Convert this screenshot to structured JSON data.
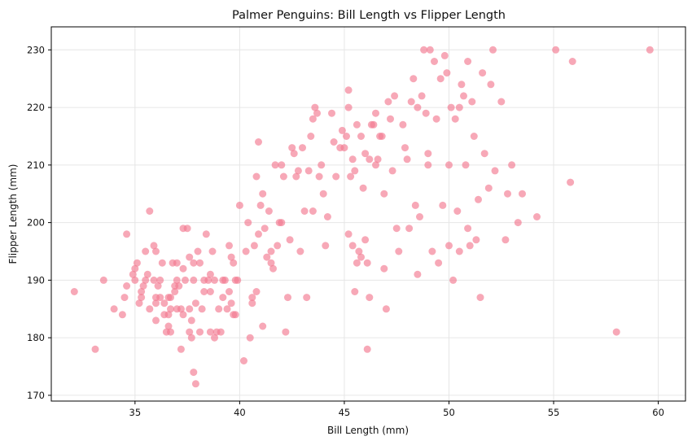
{
  "chart_data": {
    "type": "scatter",
    "title": "Palmer Penguins: Bill Length vs Flipper Length",
    "xlabel": "Bill Length (mm)",
    "ylabel": "Flipper Length (mm)",
    "xlim": [
      31,
      61.3
    ],
    "ylim": [
      169,
      234
    ],
    "xticks": [
      35,
      40,
      45,
      50,
      55,
      60
    ],
    "yticks": [
      170,
      180,
      190,
      200,
      210,
      220,
      230
    ],
    "grid": true,
    "legend": "none",
    "marker_color": "#F37A91",
    "marker_opacity": 0.65,
    "series": [
      {
        "points": [
          [
            32.1,
            188
          ],
          [
            33.1,
            178
          ],
          [
            33.5,
            190
          ],
          [
            34.0,
            185
          ],
          [
            34.4,
            184
          ],
          [
            34.5,
            187
          ],
          [
            34.6,
            189
          ],
          [
            34.6,
            198
          ],
          [
            35.0,
            190
          ],
          [
            35.0,
            192
          ],
          [
            35.1,
            193
          ],
          [
            35.2,
            186
          ],
          [
            35.3,
            187
          ],
          [
            35.5,
            190
          ],
          [
            35.5,
            195
          ],
          [
            35.6,
            191
          ],
          [
            35.7,
            185
          ],
          [
            35.7,
            202
          ],
          [
            35.9,
            190
          ],
          [
            36.0,
            186
          ],
          [
            36.0,
            187
          ],
          [
            36.0,
            195
          ],
          [
            36.1,
            189
          ],
          [
            36.2,
            187
          ],
          [
            36.2,
            190
          ],
          [
            36.4,
            184
          ],
          [
            36.5,
            181
          ],
          [
            36.6,
            182
          ],
          [
            36.6,
            184
          ],
          [
            36.7,
            185
          ],
          [
            36.7,
            187
          ],
          [
            36.8,
            193
          ],
          [
            36.9,
            189
          ],
          [
            37.0,
            185
          ],
          [
            37.0,
            193
          ],
          [
            37.2,
            178
          ],
          [
            37.2,
            185
          ],
          [
            37.3,
            184
          ],
          [
            37.3,
            192
          ],
          [
            37.3,
            199
          ],
          [
            37.5,
            199
          ],
          [
            37.6,
            181
          ],
          [
            37.6,
            185
          ],
          [
            37.6,
            194
          ],
          [
            37.7,
            180
          ],
          [
            37.7,
            183
          ],
          [
            37.8,
            174
          ],
          [
            37.8,
            190
          ],
          [
            37.8,
            193
          ],
          [
            37.9,
            172
          ],
          [
            38.1,
            181
          ],
          [
            38.2,
            185
          ],
          [
            38.3,
            190
          ],
          [
            38.5,
            190
          ],
          [
            38.6,
            188
          ],
          [
            38.6,
            191
          ],
          [
            38.7,
            195
          ],
          [
            38.8,
            180
          ],
          [
            38.9,
            181
          ],
          [
            39.0,
            185
          ],
          [
            39.1,
            181
          ],
          [
            39.2,
            190
          ],
          [
            39.3,
            190
          ],
          [
            39.5,
            188
          ],
          [
            39.6,
            186
          ],
          [
            39.7,
            184
          ],
          [
            39.7,
            193
          ],
          [
            39.8,
            184
          ],
          [
            40.2,
            176
          ],
          [
            40.3,
            195
          ],
          [
            40.5,
            180
          ],
          [
            40.6,
            187
          ],
          [
            40.8,
            188
          ],
          [
            40.8,
            208
          ],
          [
            40.9,
            214
          ],
          [
            41.0,
            203
          ],
          [
            41.1,
            182
          ],
          [
            41.3,
            194
          ],
          [
            41.4,
            202
          ],
          [
            41.5,
            195
          ],
          [
            41.6,
            192
          ],
          [
            41.7,
            210
          ],
          [
            42.0,
            210
          ],
          [
            42.2,
            181
          ],
          [
            42.3,
            187
          ],
          [
            42.5,
            213
          ],
          [
            42.7,
            208
          ],
          [
            42.8,
            209
          ],
          [
            43.2,
            187
          ],
          [
            43.3,
            209
          ],
          [
            43.5,
            218
          ],
          [
            43.5,
            202
          ],
          [
            43.6,
            220
          ],
          [
            44.1,
            196
          ],
          [
            44.4,
            219
          ],
          [
            44.5,
            214
          ],
          [
            45.0,
            213
          ],
          [
            45.1,
            215
          ],
          [
            45.2,
            198
          ],
          [
            45.2,
            223
          ],
          [
            45.4,
            211
          ],
          [
            45.4,
            196
          ],
          [
            45.5,
            188
          ],
          [
            45.6,
            193
          ],
          [
            45.7,
            195
          ],
          [
            45.8,
            194
          ],
          [
            46.0,
            197
          ],
          [
            46.1,
            193
          ],
          [
            46.1,
            178
          ],
          [
            46.2,
            187
          ],
          [
            46.2,
            211
          ],
          [
            46.4,
            217
          ],
          [
            46.5,
            210
          ],
          [
            46.7,
            215
          ],
          [
            46.9,
            192
          ],
          [
            47.0,
            185
          ],
          [
            47.3,
            209
          ],
          [
            47.5,
            199
          ],
          [
            47.6,
            195
          ],
          [
            48.1,
            199
          ],
          [
            48.2,
            221
          ],
          [
            48.4,
            203
          ],
          [
            48.5,
            191
          ],
          [
            48.7,
            222
          ],
          [
            48.8,
            230
          ],
          [
            49.0,
            212
          ],
          [
            49.2,
            195
          ],
          [
            49.5,
            193
          ],
          [
            49.6,
            225
          ],
          [
            49.8,
            229
          ],
          [
            50.0,
            196
          ],
          [
            50.2,
            190
          ],
          [
            50.4,
            202
          ],
          [
            50.5,
            220
          ],
          [
            50.8,
            210
          ],
          [
            51.0,
            196
          ],
          [
            51.3,
            197
          ],
          [
            51.5,
            187
          ],
          [
            51.9,
            206
          ],
          [
            52.1,
            230
          ],
          [
            52.5,
            221
          ],
          [
            52.7,
            197
          ],
          [
            53.5,
            205
          ],
          [
            54.2,
            201
          ],
          [
            55.1,
            230
          ],
          [
            55.8,
            207
          ],
          [
            55.9,
            228
          ],
          [
            58.0,
            181
          ],
          [
            59.6,
            230
          ],
          [
            50.9,
            228
          ],
          [
            51.1,
            221
          ],
          [
            50.6,
            224
          ],
          [
            49.4,
            218
          ],
          [
            49.0,
            210
          ],
          [
            48.6,
            201
          ],
          [
            47.8,
            217
          ],
          [
            47.2,
            218
          ],
          [
            46.8,
            215
          ],
          [
            46.3,
            217
          ],
          [
            45.9,
            206
          ],
          [
            45.3,
            208
          ],
          [
            44.9,
            216
          ],
          [
            43.8,
            208
          ],
          [
            43.1,
            202
          ],
          [
            42.9,
            195
          ],
          [
            42.4,
            197
          ],
          [
            41.8,
            196
          ],
          [
            41.1,
            205
          ],
          [
            40.7,
            196
          ],
          [
            39.9,
            190
          ],
          [
            39.5,
            196
          ],
          [
            38.8,
            190
          ],
          [
            38.1,
            193
          ],
          [
            37.4,
            190
          ],
          [
            36.9,
            188
          ],
          [
            36.3,
            193
          ],
          [
            35.9,
            196
          ],
          [
            35.3,
            188
          ],
          [
            34.9,
            191
          ],
          [
            50.1,
            220
          ],
          [
            51.7,
            212
          ],
          [
            52.8,
            205
          ],
          [
            53.3,
            200
          ],
          [
            50.7,
            222
          ],
          [
            49.9,
            226
          ],
          [
            48.9,
            219
          ],
          [
            47.9,
            213
          ],
          [
            46.6,
            211
          ],
          [
            45.8,
            215
          ],
          [
            44.0,
            205
          ],
          [
            43.9,
            210
          ],
          [
            42.6,
            212
          ],
          [
            41.2,
            199
          ],
          [
            40.0,
            203
          ],
          [
            39.6,
            194
          ],
          [
            38.4,
            198
          ],
          [
            37.1,
            189
          ],
          [
            36.4,
            186
          ],
          [
            50.3,
            218
          ],
          [
            51.4,
            204
          ],
          [
            52.2,
            209
          ],
          [
            50.9,
            199
          ],
          [
            49.7,
            203
          ],
          [
            48.3,
            225
          ],
          [
            47.1,
            221
          ],
          [
            46.5,
            219
          ],
          [
            45.6,
            217
          ],
          [
            44.6,
            208
          ],
          [
            43.7,
            219
          ],
          [
            42.1,
            208
          ],
          [
            41.5,
            193
          ],
          [
            40.4,
            200
          ],
          [
            39.2,
            187
          ],
          [
            38.3,
            188
          ],
          [
            37.0,
            190
          ],
          [
            36.0,
            183
          ],
          [
            50.5,
            195
          ],
          [
            51.2,
            215
          ],
          [
            49.1,
            230
          ],
          [
            48.0,
            211
          ],
          [
            46.9,
            205
          ],
          [
            45.5,
            209
          ],
          [
            44.2,
            201
          ],
          [
            43.4,
            215
          ],
          [
            42.0,
            200
          ],
          [
            40.6,
            186
          ],
          [
            39.4,
            185
          ],
          [
            38.0,
            195
          ],
          [
            36.7,
            181
          ],
          [
            35.4,
            189
          ],
          [
            50.0,
            210
          ],
          [
            51.6,
            226
          ],
          [
            52.0,
            224
          ],
          [
            53.0,
            210
          ],
          [
            49.3,
            228
          ],
          [
            48.5,
            220
          ],
          [
            47.4,
            222
          ],
          [
            46.0,
            212
          ],
          [
            45.2,
            220
          ],
          [
            44.8,
            213
          ],
          [
            43.0,
            213
          ],
          [
            41.9,
            200
          ],
          [
            40.9,
            198
          ],
          [
            39.8,
            190
          ],
          [
            38.6,
            181
          ],
          [
            37.9,
            186
          ],
          [
            36.6,
            187
          ]
        ]
      }
    ]
  }
}
